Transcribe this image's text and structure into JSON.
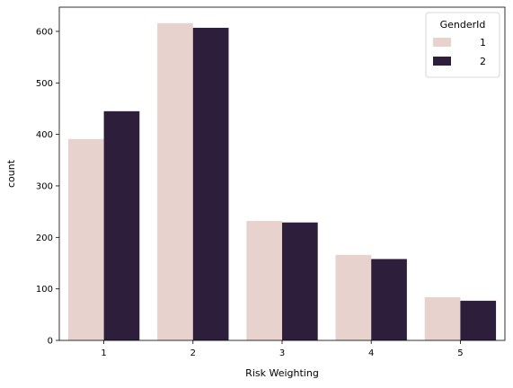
{
  "chart_data": {
    "type": "bar",
    "title": "",
    "xlabel": "Risk Weighting",
    "ylabel": "count",
    "categories": [
      "1",
      "2",
      "3",
      "4",
      "5"
    ],
    "series": [
      {
        "name": "1",
        "color": "#e8d2ce",
        "values": [
          391,
          616,
          232,
          166,
          84
        ]
      },
      {
        "name": "2",
        "color": "#2d1f3c",
        "values": [
          445,
          607,
          229,
          158,
          77
        ]
      }
    ],
    "ylim": [
      0,
      647
    ],
    "yticks": [
      0,
      100,
      200,
      300,
      400,
      500,
      600
    ],
    "grid": false,
    "legend": {
      "title": "GenderId",
      "placement": "top-right"
    }
  }
}
